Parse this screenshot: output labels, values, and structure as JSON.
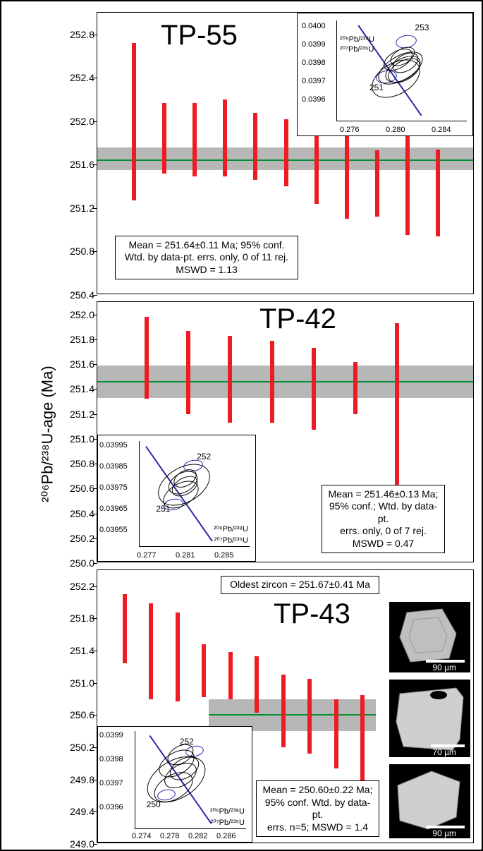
{
  "global_axis_label": "²⁰⁶Pb/²³⁸U-age (Ma)",
  "panels": {
    "tp55": {
      "title": "TP-55",
      "y_ticks": [
        250.4,
        250.8,
        251.2,
        251.6,
        252.0,
        252.4,
        252.8
      ],
      "y_min": 250.4,
      "y_max": 253.0,
      "mean": 251.64,
      "mean_err_band": [
        251.55,
        251.76
      ],
      "bars": [
        {
          "low": 251.27,
          "high": 252.72
        },
        {
          "low": 251.52,
          "high": 252.17
        },
        {
          "low": 251.49,
          "high": 252.17
        },
        {
          "low": 251.49,
          "high": 252.2
        },
        {
          "low": 251.46,
          "high": 252.08
        },
        {
          "low": 251.4,
          "high": 252.02
        },
        {
          "low": 251.24,
          "high": 251.89
        },
        {
          "low": 251.1,
          "high": 251.96
        },
        {
          "low": 251.12,
          "high": 251.73
        },
        {
          "low": 250.95,
          "high": 251.9
        },
        {
          "low": 250.94,
          "high": 251.74
        }
      ],
      "info_lines": [
        "Mean = 251.64±0.11 Ma; 95% conf.",
        "Wtd. by data-pt. errs. only, 0 of 11 rej.",
        "MSWD = 1.13"
      ],
      "inset": {
        "x_ticks": [
          "0.276",
          "0.280",
          "0.284"
        ],
        "y_ticks": [
          "0.0396",
          "0.0397",
          "0.0398",
          "0.0399",
          "0.0400"
        ],
        "numbers": [
          "251",
          "253"
        ],
        "x_label": "²⁰⁷Pb/²³⁵U",
        "y_label": "²⁰⁶Pb/²³⁸U"
      }
    },
    "tp42": {
      "title": "TP-42",
      "y_ticks": [
        250.0,
        250.2,
        250.4,
        250.6,
        250.8,
        251.0,
        251.2,
        251.4,
        251.6,
        251.8,
        252.0
      ],
      "y_min": 250.0,
      "y_max": 252.1,
      "mean": 251.46,
      "mean_err_band": [
        251.33,
        251.59
      ],
      "bars": [
        {
          "low": 251.32,
          "high": 251.98
        },
        {
          "low": 251.2,
          "high": 251.87
        },
        {
          "low": 251.13,
          "high": 251.83
        },
        {
          "low": 251.13,
          "high": 251.79
        },
        {
          "low": 251.07,
          "high": 251.73
        },
        {
          "low": 251.2,
          "high": 251.62
        },
        {
          "low": 250.6,
          "high": 251.93
        }
      ],
      "info_lines": [
        "Mean = 251.46±0.13 Ma;",
        "95% conf.; Wtd. by data-pt.",
        "errs. only, 0 of 7 rej.",
        "MSWD = 0.47"
      ],
      "inset": {
        "x_ticks": [
          "0.277",
          "0.281",
          "0.285"
        ],
        "y_ticks": [
          "0.03955",
          "0.03965",
          "0.03975",
          "0.03985",
          "0.03995"
        ],
        "numbers": [
          "251",
          "252"
        ],
        "x_label": "²⁰⁷Pb/²³⁵U",
        "y_label": "²⁰⁶Pb/²³⁸U"
      }
    },
    "tp43": {
      "title": "TP-43",
      "y_ticks": [
        249.0,
        249.4,
        249.8,
        250.2,
        250.6,
        251.0,
        251.4,
        251.8,
        252.2
      ],
      "y_min": 249.0,
      "y_max": 252.4,
      "mean": 250.6,
      "mean_err_band": [
        250.4,
        250.8
      ],
      "mean_x_start": 0.4,
      "bars": [
        {
          "low": 251.24,
          "high": 252.1
        },
        {
          "low": 250.8,
          "high": 251.99
        },
        {
          "low": 250.77,
          "high": 251.87
        },
        {
          "low": 250.82,
          "high": 251.48
        },
        {
          "low": 250.8,
          "high": 251.38
        },
        {
          "low": 250.63,
          "high": 251.33
        },
        {
          "low": 250.2,
          "high": 251.1
        },
        {
          "low": 250.12,
          "high": 251.05
        },
        {
          "low": 249.94,
          "high": 250.8
        },
        {
          "low": 249.55,
          "high": 250.85
        }
      ],
      "oldest_label": "Oldest zircon = 251.67±0.41 Ma",
      "info_lines": [
        "Mean = 250.60±0.22 Ma;",
        "95% conf. Wtd. by data-pt.",
        "errs. n=5; MSWD = 1.4"
      ],
      "inset": {
        "x_ticks": [
          "0.274",
          "0.278",
          "0.282",
          "0.286"
        ],
        "y_ticks": [
          "0.0396",
          "0.0397",
          "0.0398",
          "0.0399"
        ],
        "numbers": [
          "250",
          "252"
        ],
        "x_label": "²⁰⁷Pb/²³⁵U",
        "y_label": "²⁰⁶Pb/²³⁸U"
      },
      "sem_scales": [
        "90 µm",
        "70 µm",
        "90 µm"
      ]
    }
  },
  "colors": {
    "bar": "#ed1c24",
    "mean_line": "#018f34",
    "band": "#b7b7b7",
    "concordia": "#2a2aa8"
  }
}
